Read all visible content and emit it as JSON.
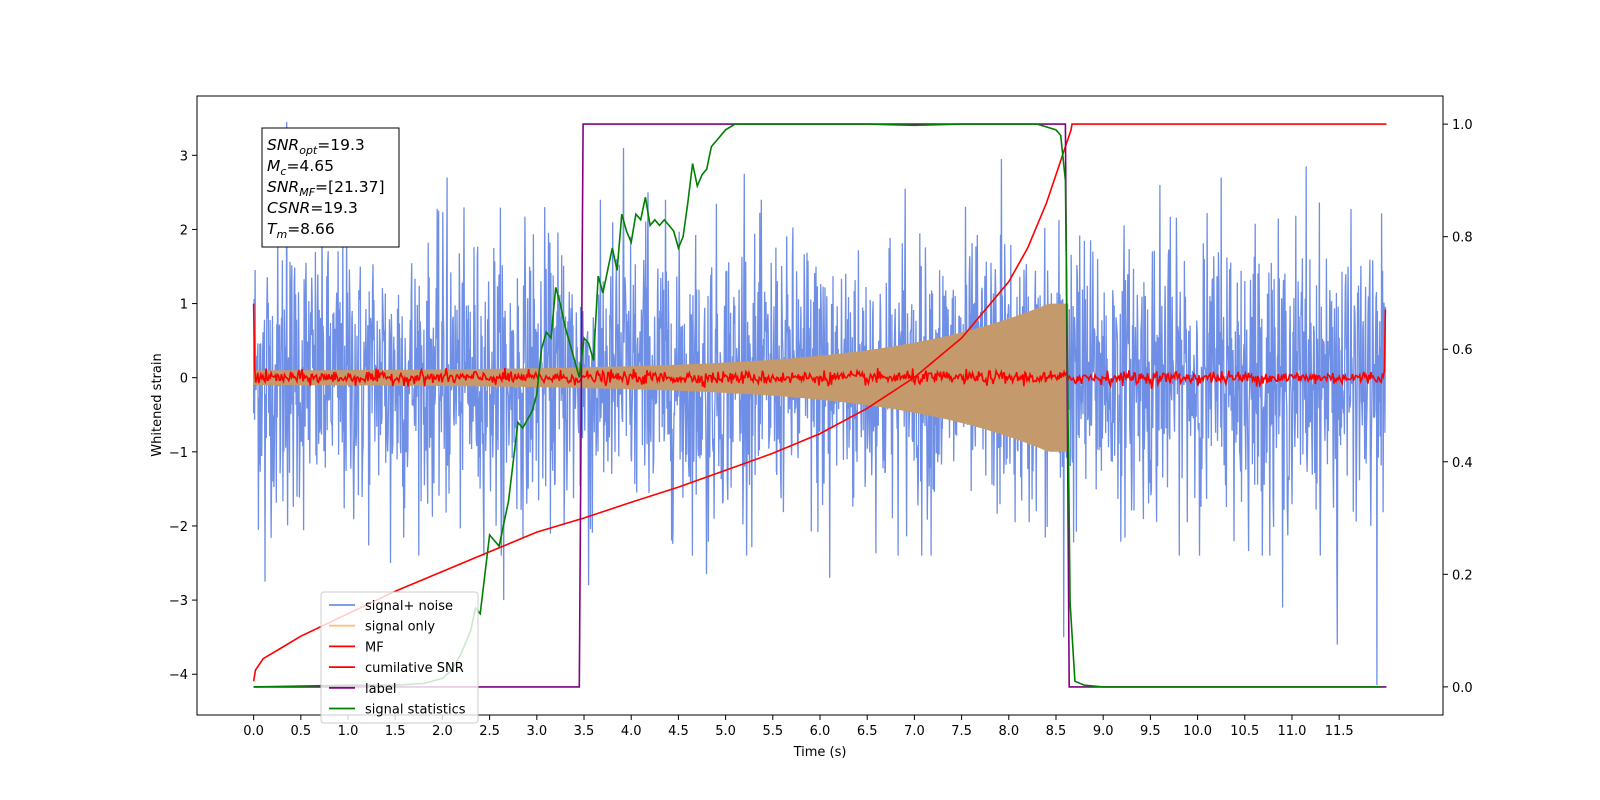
{
  "chart_data": {
    "type": "line",
    "xlabel": "Time (s)",
    "ylabel": "Whitened strain",
    "xlim": [
      -0.6,
      12.6
    ],
    "ylim": [
      -4.55,
      3.8
    ],
    "ylim_right": [
      -0.05,
      1.05
    ],
    "x_ticks": [
      0.0,
      0.5,
      1.0,
      1.5,
      2.0,
      2.5,
      3.0,
      3.5,
      4.0,
      4.5,
      5.0,
      5.5,
      6.0,
      6.5,
      7.0,
      7.5,
      8.0,
      8.5,
      9.0,
      9.5,
      10.0,
      10.5,
      11.0,
      11.5
    ],
    "x_tick_labels": [
      "0.0",
      "0.5",
      "1.0",
      "1.5",
      "2.0",
      "2.5",
      "3.0",
      "3.5",
      "4.0",
      "4.5",
      "5.0",
      "5.5",
      "6.0",
      "6.5",
      "7.0",
      "7.5",
      "8.0",
      "8.5",
      "9.0",
      "9.5",
      "10.0",
      "10.5",
      "11.0",
      "11.5"
    ],
    "y_ticks": [
      -4,
      -3,
      -2,
      -1,
      0,
      1,
      2,
      3
    ],
    "y_tick_labels": [
      "−4",
      "−3",
      "−2",
      "−1",
      "0",
      "1",
      "2",
      "3"
    ],
    "y_right_ticks": [
      0.0,
      0.2,
      0.4,
      0.6,
      0.8,
      1.0
    ],
    "y_right_tick_labels": [
      "0.0",
      "0.2",
      "0.4",
      "0.6",
      "0.8",
      "1.0"
    ],
    "grid": false,
    "legend_position": "lower-left",
    "annotation": {
      "lines": [
        {
          "sym": "SNR",
          "sub": "opt",
          "val": "=19.3"
        },
        {
          "sym": "M",
          "sub": "c",
          "val": "=4.65"
        },
        {
          "sym": "SNR",
          "sub": "MF",
          "val": "=[21.37]"
        },
        {
          "sym": "CSNR",
          "sub": "",
          "val": "=19.3"
        },
        {
          "sym": "T",
          "sub": "m",
          "val": "=8.66"
        }
      ]
    },
    "series": [
      {
        "name": "signal+ noise",
        "axis": "left",
        "color": "#6f8fe6",
        "kind": "noise",
        "x_range": [
          0.0,
          11.99
        ],
        "band": 1.45,
        "extremes": [
          [
            0.35,
            3.45
          ],
          [
            3.92,
            3.1
          ],
          [
            4.18,
            2.5
          ],
          [
            7.92,
            2.95
          ],
          [
            2.05,
            2.7
          ],
          [
            3.55,
            -2.8
          ],
          [
            8.58,
            -3.5
          ],
          [
            11.48,
            -3.6
          ],
          [
            11.9,
            -4.15
          ],
          [
            10.9,
            -3.1
          ],
          [
            1.45,
            -2.5
          ],
          [
            2.65,
            -3.0
          ],
          [
            0.12,
            -2.75
          ],
          [
            5.2,
            2.75
          ],
          [
            6.9,
            2.55
          ],
          [
            9.6,
            2.6
          ],
          [
            10.25,
            2.7
          ],
          [
            11.15,
            2.85
          ],
          [
            6.1,
            -2.7
          ],
          [
            4.8,
            -2.65
          ]
        ]
      },
      {
        "name": "signal only",
        "axis": "left",
        "color": "#c49a6c",
        "legend_color": "#ffbf80",
        "kind": "envelope",
        "x_range": [
          0.0,
          8.63
        ],
        "amp_start": 0.1,
        "amp_end": 0.9
      },
      {
        "name": "MF",
        "axis": "left",
        "color": "#ff0000",
        "kind": "small_noise",
        "x_range": [
          0.0,
          11.99
        ],
        "start_value": 1.0,
        "end_value": 0.92,
        "amplitude": 0.05
      },
      {
        "name": "cumilative SNR",
        "axis": "right",
        "color": "#ff0000",
        "x": [
          0.0,
          0.02,
          0.1,
          0.3,
          0.5,
          1.0,
          1.5,
          2.0,
          2.5,
          3.0,
          3.5,
          4.0,
          4.5,
          5.0,
          5.5,
          6.0,
          6.5,
          7.0,
          7.5,
          8.0,
          8.2,
          8.4,
          8.5,
          8.6,
          8.66,
          8.67,
          12.0
        ],
        "y": [
          0.01,
          0.03,
          0.05,
          0.07,
          0.09,
          0.13,
          0.17,
          0.205,
          0.24,
          0.275,
          0.3,
          0.328,
          0.355,
          0.385,
          0.415,
          0.45,
          0.495,
          0.55,
          0.62,
          0.72,
          0.78,
          0.86,
          0.91,
          0.96,
          0.99,
          1.0,
          1.0
        ]
      },
      {
        "name": "label",
        "axis": "right",
        "color": "#800080",
        "x": [
          0.0,
          3.45,
          3.49,
          8.6,
          8.64,
          12.0
        ],
        "y": [
          0.0,
          0.0,
          1.0,
          1.0,
          0.0,
          0.0
        ]
      },
      {
        "name": "signal statistics",
        "axis": "right",
        "color": "#008000",
        "x": [
          0.0,
          1.0,
          1.5,
          1.8,
          2.0,
          2.1,
          2.2,
          2.3,
          2.35,
          2.4,
          2.45,
          2.5,
          2.6,
          2.7,
          2.8,
          2.85,
          2.95,
          3.0,
          3.05,
          3.1,
          3.15,
          3.2,
          3.25,
          3.3,
          3.35,
          3.4,
          3.45,
          3.5,
          3.55,
          3.6,
          3.65,
          3.7,
          3.75,
          3.8,
          3.85,
          3.9,
          3.95,
          4.0,
          4.05,
          4.1,
          4.15,
          4.2,
          4.25,
          4.3,
          4.35,
          4.4,
          4.45,
          4.5,
          4.55,
          4.6,
          4.65,
          4.7,
          4.75,
          4.8,
          4.85,
          4.9,
          5.0,
          5.1,
          5.2,
          5.3,
          5.5,
          6.0,
          6.5,
          7.0,
          7.5,
          8.0,
          8.3,
          8.5,
          8.55,
          8.6,
          8.65,
          8.7,
          8.8,
          9.0,
          10.0,
          11.0,
          11.95
        ],
        "y": [
          0.0,
          0.003,
          0.003,
          0.006,
          0.015,
          0.03,
          0.06,
          0.1,
          0.14,
          0.13,
          0.2,
          0.27,
          0.25,
          0.33,
          0.47,
          0.46,
          0.49,
          0.52,
          0.6,
          0.63,
          0.62,
          0.71,
          0.68,
          0.64,
          0.61,
          0.58,
          0.55,
          0.62,
          0.61,
          0.58,
          0.73,
          0.7,
          0.74,
          0.78,
          0.74,
          0.84,
          0.81,
          0.79,
          0.84,
          0.83,
          0.87,
          0.82,
          0.83,
          0.82,
          0.83,
          0.82,
          0.81,
          0.78,
          0.8,
          0.86,
          0.93,
          0.89,
          0.91,
          0.92,
          0.96,
          0.97,
          0.99,
          1.0,
          1.0,
          1.0,
          1.0,
          1.0,
          1.0,
          0.998,
          1.0,
          1.0,
          1.0,
          0.99,
          0.98,
          0.9,
          0.15,
          0.01,
          0.003,
          0.0,
          0.0,
          0.0,
          0.0
        ]
      }
    ]
  }
}
